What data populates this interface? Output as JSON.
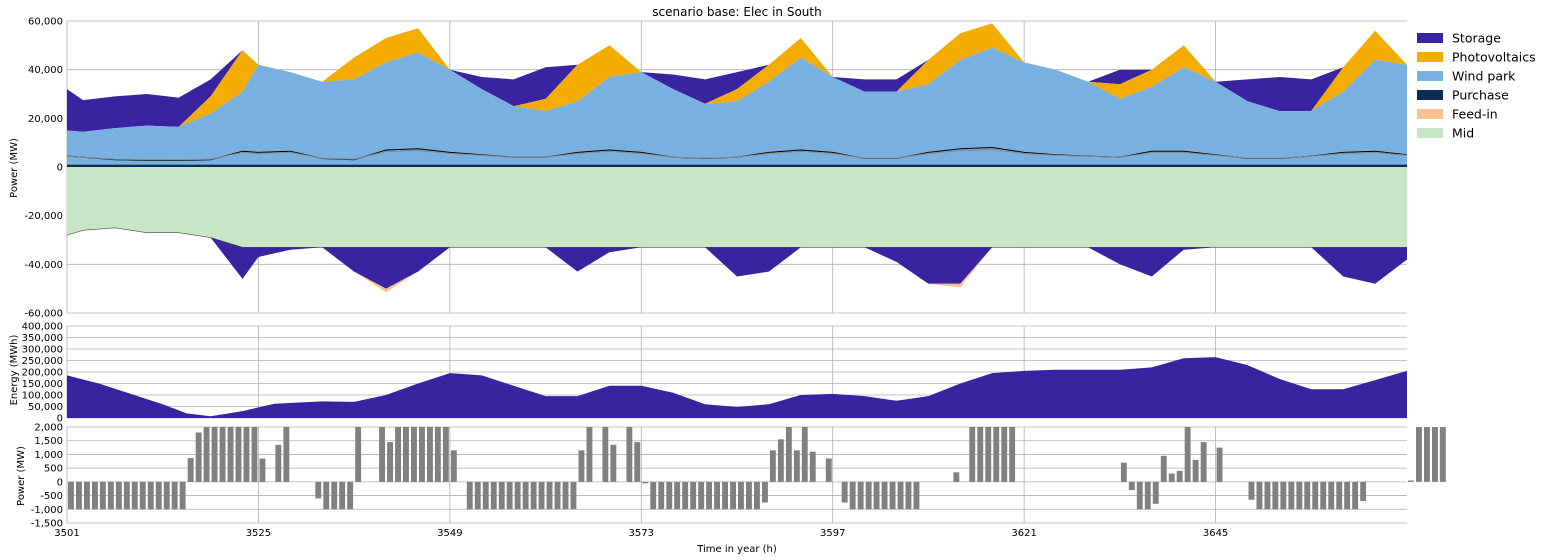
{
  "chart_data": [
    {
      "type": "area",
      "title": "scenario base: Elec in South",
      "ylabel": "Power (MW)",
      "ylim": [
        -60000,
        60000
      ],
      "yticks": [
        -60000,
        -40000,
        -20000,
        0,
        20000,
        40000,
        60000
      ],
      "ytick_labels": [
        "-60,000",
        "-40,000",
        "-20,000",
        "0",
        "20,000",
        "40,000",
        "60,000"
      ],
      "xlim": [
        3501,
        3669
      ],
      "grid": true,
      "legend_position": "right",
      "legend": [
        {
          "name": "Storage",
          "color": "#3a23a0"
        },
        {
          "name": "Photovoltaics",
          "color": "#f4ac00"
        },
        {
          "name": "Wind park",
          "color": "#78b0e0"
        },
        {
          "name": "Purchase",
          "color": "#0c2e52"
        },
        {
          "name": "Feed-in",
          "color": "#f9c391"
        },
        {
          "name": "Mid",
          "color": "#c6e6c6"
        }
      ],
      "x": [
        3501,
        3503,
        3507,
        3511,
        3515,
        3519,
        3523,
        3525,
        3529,
        3533,
        3537,
        3541,
        3545,
        3549,
        3553,
        3557,
        3561,
        3565,
        3569,
        3573,
        3577,
        3581,
        3585,
        3589,
        3593,
        3597,
        3601,
        3605,
        3609,
        3613,
        3617,
        3621,
        3625,
        3629,
        3633,
        3637,
        3641,
        3645,
        3649,
        3653,
        3657,
        3661,
        3665,
        3669
      ],
      "series": [
        {
          "name": "Purchase",
          "values": [
            1000,
            1000,
            1000,
            1000,
            1000,
            1000,
            1000,
            1000,
            1000,
            1000,
            1000,
            1000,
            1000,
            1000,
            1000,
            1000,
            1000,
            1000,
            1000,
            1000,
            1000,
            1000,
            1000,
            1000,
            1000,
            1000,
            1000,
            1000,
            1000,
            1000,
            1000,
            1000,
            1000,
            1000,
            1000,
            1000,
            1000,
            1000,
            1000,
            1000,
            1000,
            1000,
            1000,
            1000
          ]
        },
        {
          "name": "Wind park",
          "values": [
            14000,
            13500,
            15000,
            16000,
            15500,
            21000,
            30000,
            41000,
            38000,
            34000,
            35000,
            42000,
            46000,
            39000,
            31000,
            24000,
            22000,
            26000,
            36000,
            38000,
            31000,
            25000,
            26000,
            34000,
            44000,
            36000,
            30000,
            30000,
            33000,
            43000,
            48000,
            42000,
            39000,
            34000,
            27000,
            32000,
            40000,
            34000,
            26000,
            22000,
            22000,
            30000,
            43000,
            41000
          ]
        },
        {
          "name": "Photovoltaics",
          "values": [
            0,
            0,
            0,
            0,
            0,
            7000,
            17000,
            0,
            0,
            0,
            9000,
            10000,
            10000,
            0,
            0,
            0,
            5000,
            15000,
            13000,
            0,
            0,
            0,
            5000,
            7000,
            8000,
            0,
            0,
            0,
            10000,
            11000,
            10000,
            0,
            0,
            0,
            6000,
            7000,
            9000,
            0,
            0,
            0,
            0,
            10000,
            12000,
            0
          ]
        },
        {
          "name": "Storage",
          "values": [
            17000,
            13000,
            13000,
            13000,
            12000,
            7000,
            0,
            0,
            0,
            0,
            0,
            0,
            0,
            0,
            5000,
            11000,
            13000,
            0,
            0,
            0,
            6000,
            10000,
            7000,
            0,
            0,
            0,
            5000,
            5000,
            0,
            0,
            0,
            0,
            0,
            0,
            6000,
            0,
            0,
            0,
            9000,
            14000,
            13000,
            0,
            0,
            0
          ]
        },
        {
          "name": "Mid",
          "values": [
            -28000,
            -26000,
            -25000,
            -27000,
            -27000,
            -29000,
            -33000,
            -33000,
            -33000,
            -33000,
            -33000,
            -33000,
            -33000,
            -33000,
            -33000,
            -33000,
            -33000,
            -33000,
            -33000,
            -33000,
            -33000,
            -33000,
            -33000,
            -33000,
            -33000,
            -33000,
            -33000,
            -33000,
            -33000,
            -33000,
            -33000,
            -33000,
            -33000,
            -33000,
            -33000,
            -33000,
            -33000,
            -33000,
            -33000,
            -33000,
            -33000,
            -33000,
            -33000,
            -33000
          ]
        },
        {
          "name": "Storage charge",
          "values": [
            0,
            0,
            0,
            0,
            0,
            0,
            -13000,
            -4000,
            -1000,
            0,
            -10000,
            -17000,
            -10000,
            0,
            0,
            0,
            0,
            -10000,
            -2000,
            0,
            0,
            0,
            -12000,
            -10000,
            0,
            0,
            0,
            -6000,
            -15000,
            -15000,
            0,
            0,
            0,
            0,
            -7000,
            -12000,
            -1000,
            0,
            0,
            0,
            0,
            -12000,
            -15000,
            -5000
          ]
        },
        {
          "name": "Feed-in",
          "values": [
            0,
            0,
            0,
            0,
            0,
            0,
            0,
            0,
            0,
            0,
            0,
            -1500,
            0,
            0,
            0,
            0,
            0,
            0,
            0,
            0,
            0,
            0,
            0,
            0,
            0,
            0,
            0,
            0,
            0,
            -1500,
            0,
            0,
            0,
            0,
            0,
            0,
            0,
            0,
            0,
            0,
            0,
            0,
            0,
            0
          ]
        },
        {
          "name": "Demand",
          "values": [
            4500,
            4000,
            3000,
            2800,
            2700,
            3000,
            6500,
            6000,
            6500,
            3500,
            3000,
            7000,
            7500,
            6000,
            5000,
            4000,
            4000,
            6000,
            7000,
            6000,
            4000,
            3500,
            4000,
            6000,
            7000,
            6000,
            3500,
            3500,
            6000,
            7500,
            8000,
            6000,
            5000,
            4500,
            4000,
            6500,
            6500,
            5000,
            3500,
            3500,
            4500,
            6000,
            6500,
            5000
          ]
        }
      ]
    },
    {
      "type": "area",
      "ylabel": "Energy (MWh)",
      "ylim": [
        0,
        400000
      ],
      "yticks": [
        0,
        50000,
        100000,
        150000,
        200000,
        250000,
        300000,
        350000,
        400000
      ],
      "ytick_labels": [
        "0",
        "50,000",
        "100,000",
        "150,000",
        "200,000",
        "250,000",
        "300,000",
        "350,000",
        "400,000"
      ],
      "grid": true,
      "color": "#3a23a0",
      "x": [
        3501,
        3505,
        3509,
        3513,
        3516,
        3519,
        3523,
        3527,
        3533,
        3537,
        3541,
        3545,
        3549,
        3553,
        3557,
        3561,
        3565,
        3569,
        3573,
        3577,
        3581,
        3585,
        3589,
        3593,
        3597,
        3601,
        3605,
        3609,
        3613,
        3617,
        3621,
        3625,
        3629,
        3633,
        3637,
        3641,
        3645,
        3649,
        3653,
        3657,
        3661,
        3665,
        3669
      ],
      "values": [
        185000,
        150000,
        105000,
        60000,
        20000,
        8000,
        30000,
        62000,
        72000,
        70000,
        100000,
        150000,
        195000,
        185000,
        140000,
        95000,
        95000,
        140000,
        140000,
        110000,
        60000,
        48000,
        60000,
        100000,
        105000,
        95000,
        75000,
        95000,
        150000,
        195000,
        205000,
        210000,
        210000,
        210000,
        220000,
        260000,
        265000,
        230000,
        170000,
        125000,
        125000,
        165000,
        205000
      ]
    },
    {
      "type": "bar",
      "ylabel": "Power (MW)",
      "xlabel": "Time in year (h)",
      "ylim": [
        -1500,
        2000
      ],
      "yticks": [
        -1500,
        -1000,
        -500,
        0,
        500,
        1000,
        1500,
        2000
      ],
      "ytick_labels": [
        "-1,500",
        "-1,000",
        "-500",
        "0",
        "500",
        "1,000",
        "1,500",
        "2,000"
      ],
      "xticks": [
        3501,
        3525,
        3549,
        3573,
        3597,
        3621,
        3645
      ],
      "xtick_labels": [
        "3501",
        "3525",
        "3549",
        "3573",
        "3597",
        "3621",
        "3645"
      ],
      "grid": true,
      "color": "#808080",
      "x_start": 3501,
      "values": [
        -1000,
        -1000,
        -1000,
        -1000,
        -1000,
        -1000,
        -1000,
        -1000,
        -1000,
        -1000,
        -1000,
        -1000,
        -1000,
        -1000,
        -1000,
        870,
        1800,
        2000,
        2000,
        2000,
        2000,
        2000,
        2000,
        2000,
        850,
        0,
        1350,
        2000,
        0,
        0,
        0,
        -600,
        -1000,
        -1000,
        -1000,
        -1000,
        2000,
        0,
        0,
        2000,
        1450,
        2000,
        2000,
        2000,
        2000,
        2000,
        2000,
        2000,
        1150,
        0,
        -1000,
        -1000,
        -1000,
        -1000,
        -1000,
        -1000,
        -1000,
        -1000,
        -1000,
        -1000,
        -1000,
        -1000,
        -1000,
        -1000,
        1150,
        2000,
        0,
        2000,
        1350,
        0,
        2000,
        1450,
        -50,
        -1000,
        -1000,
        -1000,
        -1000,
        -1000,
        -1000,
        -1000,
        -1000,
        -1000,
        -1000,
        -1000,
        -1000,
        -1000,
        -1000,
        -750,
        1150,
        1550,
        2000,
        1150,
        2000,
        1100,
        0,
        850,
        0,
        -750,
        -1000,
        -1000,
        -1000,
        -1000,
        -1000,
        -1000,
        -1000,
        -1000,
        -1000,
        0,
        0,
        0,
        0,
        350,
        0,
        2000,
        2000,
        2000,
        2000,
        2000,
        2000,
        0,
        0,
        0,
        0,
        0,
        0,
        0,
        0,
        0,
        0,
        0,
        0,
        0,
        700,
        -300,
        -1000,
        -1000,
        -800,
        950,
        300,
        400,
        2000,
        800,
        1450,
        0,
        1250,
        0,
        0,
        0,
        -650,
        -1000,
        -1000,
        -1000,
        -1000,
        -1000,
        -1000,
        -1000,
        -1000,
        -1000,
        -1000,
        -1000,
        -1000,
        -1000,
        -700,
        0,
        0,
        0,
        0,
        0,
        50,
        2000,
        2000,
        2000,
        2000
      ]
    }
  ]
}
